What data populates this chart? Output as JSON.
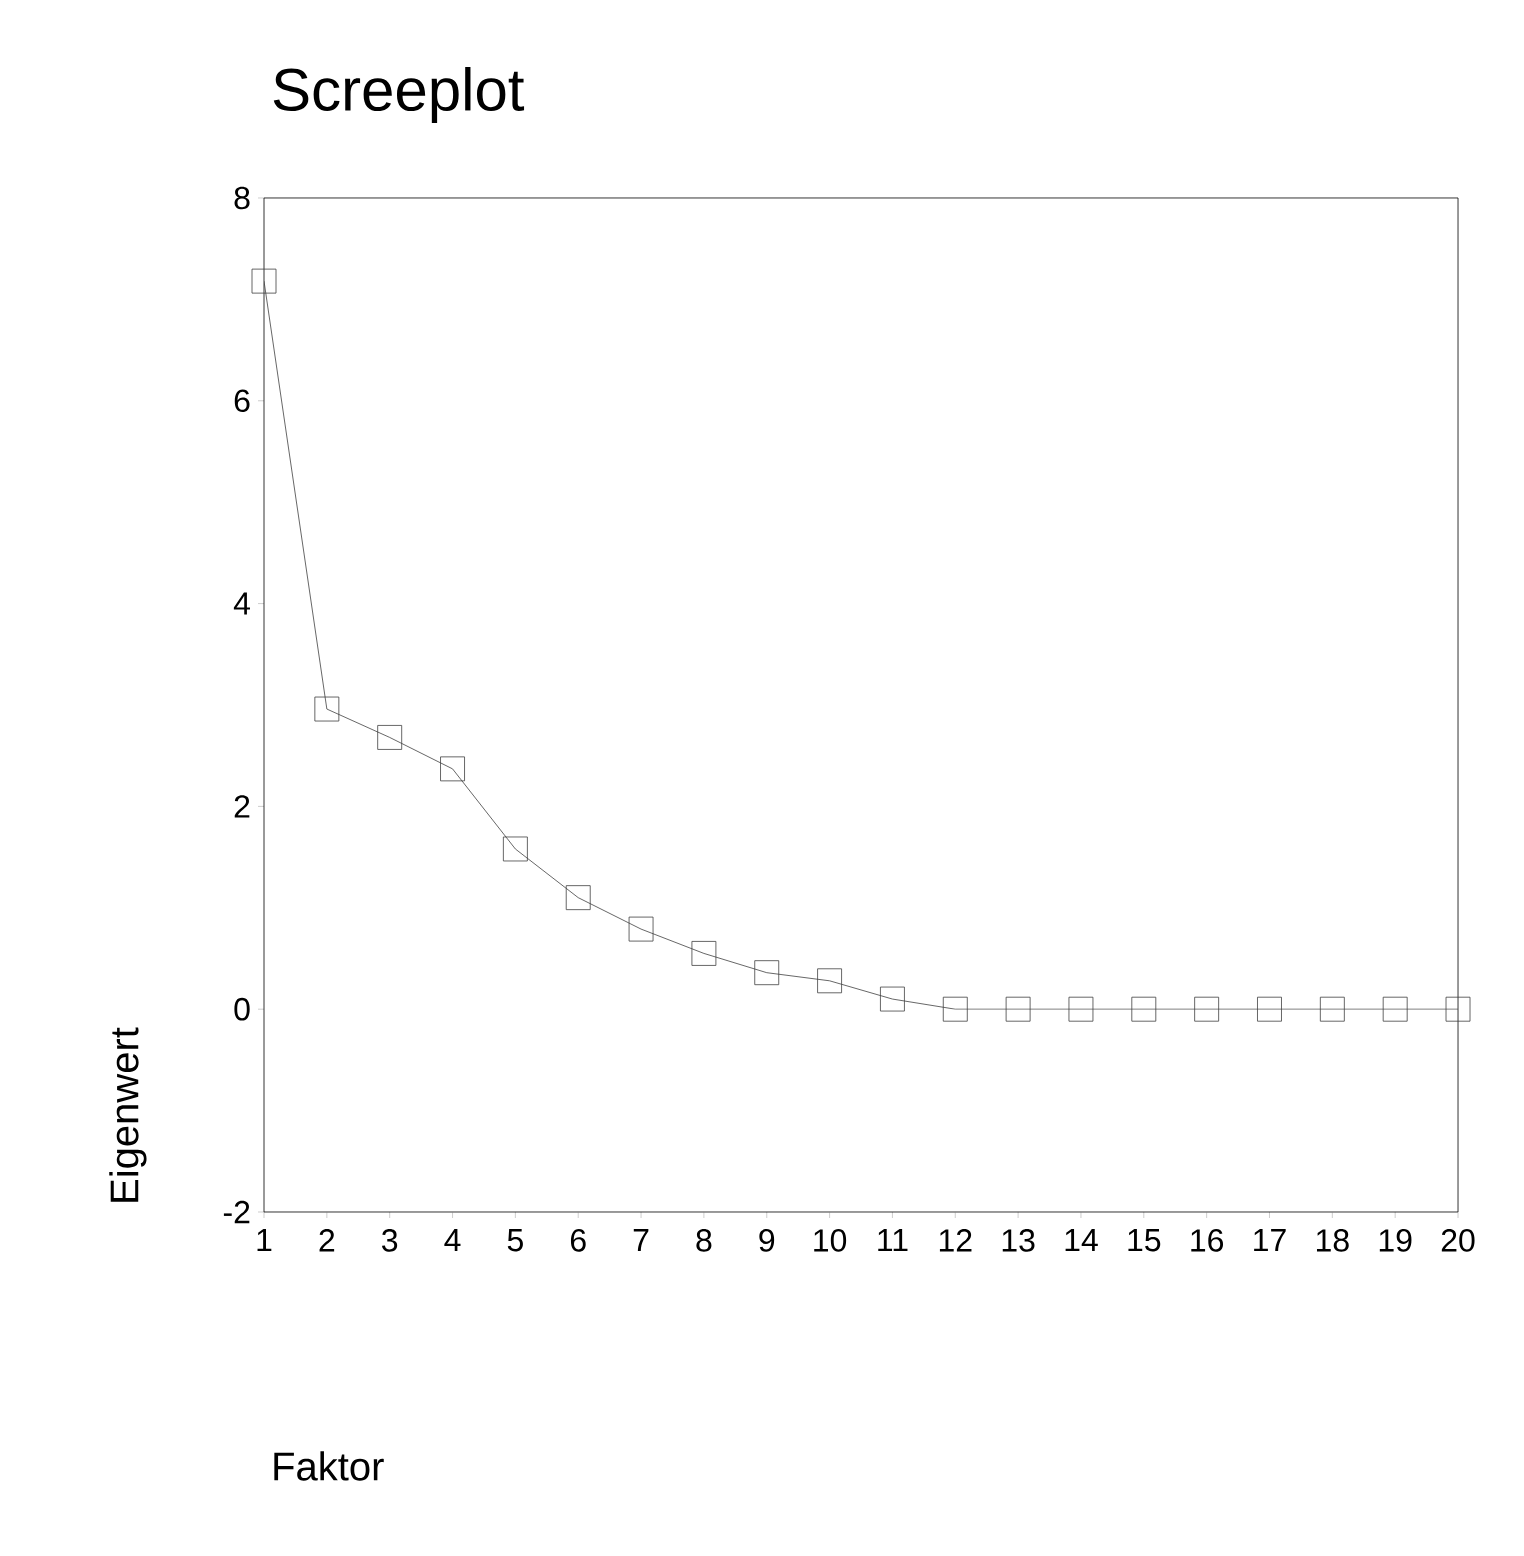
{
  "chart_data": {
    "type": "line",
    "title": "Screeplot",
    "xlabel": "Faktor",
    "ylabel": "Eigenwert",
    "x": [
      1,
      2,
      3,
      4,
      5,
      6,
      7,
      8,
      9,
      10,
      11,
      12,
      13,
      14,
      15,
      16,
      17,
      18,
      19,
      20
    ],
    "values": [
      7.18,
      2.96,
      2.68,
      2.37,
      1.58,
      1.1,
      0.79,
      0.55,
      0.36,
      0.28,
      0.1,
      0,
      0,
      0,
      0,
      0,
      0,
      0,
      0,
      0
    ],
    "color": "#404040",
    "marker": "square",
    "line_style": "solid",
    "xlim": [
      1,
      20
    ],
    "ylim": [
      -2,
      8
    ],
    "xticks": [
      1,
      2,
      3,
      4,
      5,
      6,
      7,
      8,
      9,
      10,
      11,
      12,
      13,
      14,
      15,
      16,
      17,
      18,
      19,
      20
    ],
    "yticks": [
      -2,
      0,
      2,
      4,
      6,
      8
    ]
  }
}
